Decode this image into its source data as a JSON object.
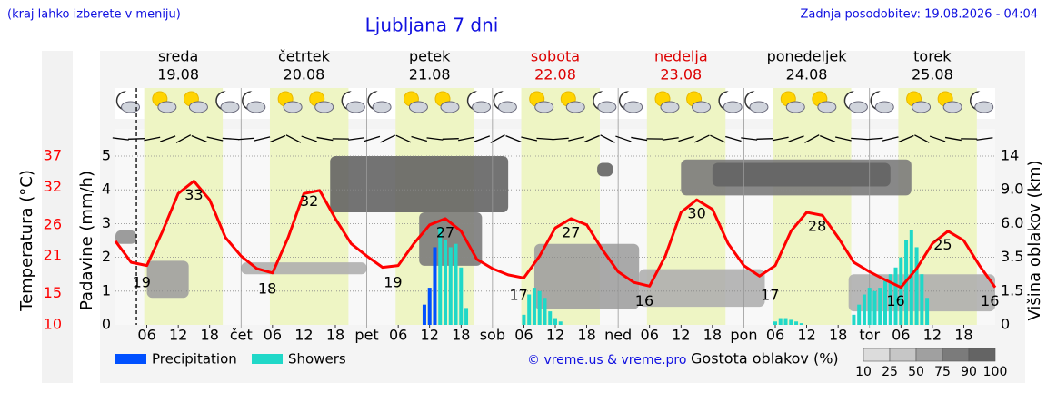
{
  "header": {
    "left_note": "(kraj lahko izberete v meniju)",
    "updated": "Zadnja posodobitev: 19.08.2026 - 04:04"
  },
  "chart_data": {
    "type": "meteogram",
    "title": "Ljubljana 7 dni",
    "days": [
      {
        "name": "sreda",
        "date": "19.08",
        "color": "#000000"
      },
      {
        "name": "četrtek",
        "date": "20.08",
        "color": "#000000"
      },
      {
        "name": "petek",
        "date": "21.08",
        "color": "#000000"
      },
      {
        "name": "sobota",
        "date": "22.08",
        "color": "#dd0000"
      },
      {
        "name": "nedelja",
        "date": "23.08",
        "color": "#dd0000"
      },
      {
        "name": "ponedeljek",
        "date": "24.08",
        "color": "#000000"
      },
      {
        "name": "torek",
        "date": "25.08",
        "color": "#000000"
      }
    ],
    "xlim": [
      0,
      168
    ],
    "xticks": [
      {
        "value": 6,
        "label": "06"
      },
      {
        "value": 12,
        "label": "12"
      },
      {
        "value": 18,
        "label": "18"
      },
      {
        "value": 24,
        "label": "čet"
      },
      {
        "value": 30,
        "label": "06"
      },
      {
        "value": 36,
        "label": "12"
      },
      {
        "value": 42,
        "label": "18"
      },
      {
        "value": 48,
        "label": "pet"
      },
      {
        "value": 54,
        "label": "06"
      },
      {
        "value": 60,
        "label": "12"
      },
      {
        "value": 66,
        "label": "18"
      },
      {
        "value": 72,
        "label": "sob"
      },
      {
        "value": 78,
        "label": "06"
      },
      {
        "value": 84,
        "label": "12"
      },
      {
        "value": 90,
        "label": "18"
      },
      {
        "value": 96,
        "label": "ned"
      },
      {
        "value": 102,
        "label": "06"
      },
      {
        "value": 108,
        "label": "12"
      },
      {
        "value": 114,
        "label": "18"
      },
      {
        "value": 120,
        "label": "pon"
      },
      {
        "value": 126,
        "label": "06"
      },
      {
        "value": 132,
        "label": "12"
      },
      {
        "value": 138,
        "label": "18"
      },
      {
        "value": 144,
        "label": "tor"
      },
      {
        "value": 150,
        "label": "06"
      },
      {
        "value": 156,
        "label": "12"
      },
      {
        "value": 162,
        "label": "18"
      }
    ],
    "now_hour": 4,
    "y_label": "Padavine (mm/h)",
    "ylim": [
      0,
      5
    ],
    "yticks": [
      0,
      1,
      2,
      3,
      4,
      5
    ],
    "temp_label": "Temperatura (°C)",
    "tlim": [
      10,
      37
    ],
    "tticks": [
      10,
      15,
      21,
      26,
      32,
      37
    ],
    "temp_color": "#ff0000",
    "y2_label": "Višina oblakov (km)",
    "y2lim": [
      0,
      14
    ],
    "y2ticks": [
      0,
      1.5,
      3.5,
      {
        "value": 6,
        "label": "6.0"
      },
      {
        "value": 9,
        "label": "9.0"
      },
      14
    ],
    "temperature": {
      "x": [
        0,
        3,
        6,
        9,
        12,
        15,
        18,
        21,
        24,
        27,
        30,
        33,
        36,
        39,
        42,
        45,
        48,
        51,
        54,
        57,
        60,
        63,
        66,
        69,
        72,
        75,
        78,
        81,
        84,
        87,
        90,
        93,
        96,
        99,
        102,
        105,
        108,
        111,
        114,
        117,
        120,
        123,
        126,
        129,
        132,
        135,
        138,
        141,
        144,
        147,
        150,
        153,
        156,
        159,
        162,
        165,
        168
      ],
      "values": [
        23.4,
        20,
        19.5,
        25,
        31,
        33,
        30,
        24,
        21,
        19,
        18.3,
        24,
        31,
        31.5,
        27,
        23,
        21,
        19.2,
        19.5,
        23,
        26,
        27,
        25,
        20.5,
        19,
        18,
        17.5,
        21,
        25.5,
        27,
        26,
        22,
        18.5,
        16.8,
        16.2,
        21,
        28,
        30,
        28.5,
        23,
        19.5,
        17.8,
        19.5,
        25,
        28,
        27.5,
        24,
        20,
        18.5,
        17.2,
        16,
        19,
        23,
        25,
        23.5,
        19.5,
        16
      ]
    },
    "temp_labels": [
      {
        "x": 5,
        "value": 19
      },
      {
        "x": 15,
        "value": 33
      },
      {
        "x": 29,
        "value": 18
      },
      {
        "x": 37,
        "value": 32
      },
      {
        "x": 53,
        "value": 19
      },
      {
        "x": 63,
        "value": 27
      },
      {
        "x": 77,
        "value": 17
      },
      {
        "x": 87,
        "value": 27
      },
      {
        "x": 101,
        "value": 16
      },
      {
        "x": 111,
        "value": 30
      },
      {
        "x": 125,
        "value": 17
      },
      {
        "x": 134,
        "value": 28
      },
      {
        "x": 149,
        "value": 16
      },
      {
        "x": 158,
        "value": 25
      },
      {
        "x": 167,
        "value": 16
      }
    ],
    "series": [
      {
        "name": "Precipitation",
        "color": "#0050ff",
        "x": [
          59,
          60,
          61
        ],
        "values": [
          0.6,
          1.1,
          2.3
        ]
      },
      {
        "name": "Showers",
        "color": "#20d8c8",
        "x": [
          62,
          63,
          64,
          65,
          66,
          67,
          78,
          79,
          80,
          81,
          82,
          83,
          84,
          85,
          126,
          127,
          128,
          129,
          130,
          131,
          141,
          142,
          143,
          144,
          145,
          146,
          147,
          148,
          149,
          150,
          151,
          152,
          153,
          154,
          155
        ],
        "values": [
          2.9,
          2.5,
          2.3,
          2.4,
          1.7,
          0.5,
          0.3,
          0.9,
          1.1,
          1.0,
          0.8,
          0.4,
          0.2,
          0.1,
          0.1,
          0.2,
          0.2,
          0.15,
          0.1,
          0.05,
          0.3,
          0.6,
          0.9,
          1.1,
          1.0,
          1.1,
          1.3,
          1.5,
          1.7,
          2.0,
          2.5,
          2.8,
          2.3,
          1.5,
          0.8
        ]
      }
    ],
    "clouds": [
      {
        "x": [
          0,
          4
        ],
        "km": [
          4.5,
          5.5
        ],
        "cover": 60
      },
      {
        "x": [
          6,
          14
        ],
        "km": [
          1.2,
          3.3
        ],
        "cover": 50
      },
      {
        "x": [
          24,
          48
        ],
        "km": [
          2.5,
          3.2
        ],
        "cover": 40
      },
      {
        "x": [
          41,
          75
        ],
        "km": [
          7,
          14
        ],
        "cover": 90
      },
      {
        "x": [
          58,
          70
        ],
        "km": [
          3,
          7
        ],
        "cover": 75
      },
      {
        "x": [
          80,
          100
        ],
        "km": [
          0.7,
          4.5
        ],
        "cover": 50
      },
      {
        "x": [
          92,
          95
        ],
        "km": [
          11,
          13
        ],
        "cover": 90
      },
      {
        "x": [
          100,
          124
        ],
        "km": [
          0.8,
          2.8
        ],
        "cover": 40
      },
      {
        "x": [
          108,
          152
        ],
        "km": [
          8.5,
          13.5
        ],
        "cover": 75
      },
      {
        "x": [
          114,
          148
        ],
        "km": [
          9.5,
          13
        ],
        "cover": 90
      },
      {
        "x": [
          140,
          168
        ],
        "km": [
          0.6,
          2.5
        ],
        "cover": 40
      }
    ],
    "cloud_legend": {
      "title": "Gostota oblakov (%)",
      "levels": [
        10,
        25,
        50,
        75,
        90,
        100
      ]
    },
    "credit": "© vreme.us & vreme.pro"
  }
}
